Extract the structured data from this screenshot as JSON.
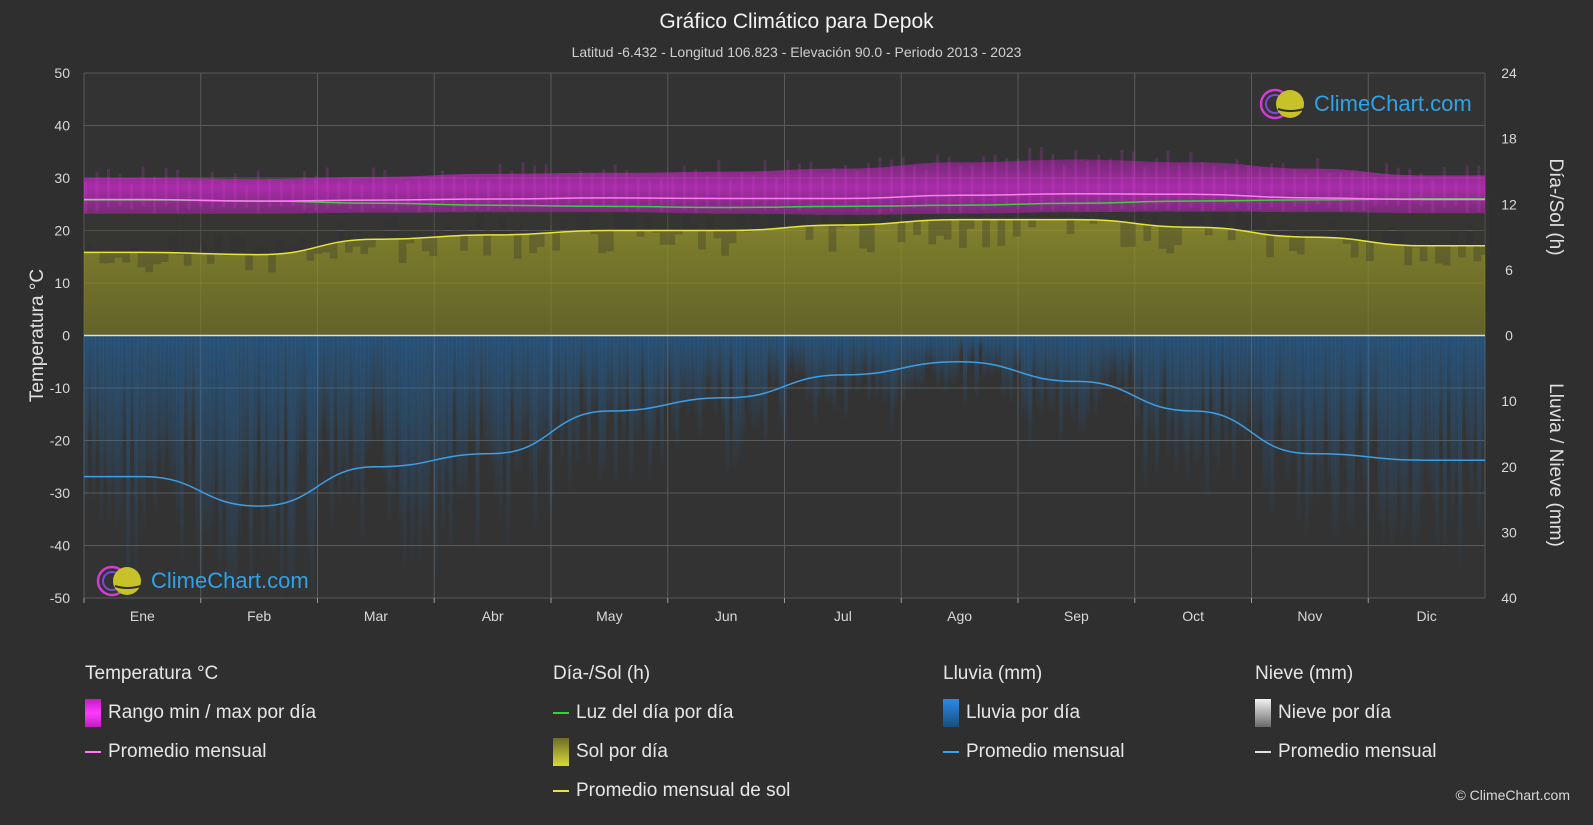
{
  "header": {
    "title": "Gráfico Climático para Depok",
    "subtitle": "Latitud -6.432 - Longitud 106.823 - Elevación 90.0 - Periodo 2013 - 2023"
  },
  "brand": {
    "text": "ClimeChart.com",
    "copyright": "© ClimeChart.com"
  },
  "chart_data": {
    "type": "line",
    "categories": [
      "Ene",
      "Feb",
      "Mar",
      "Abr",
      "May",
      "Jun",
      "Jul",
      "Ago",
      "Sep",
      "Oct",
      "Nov",
      "Dic"
    ],
    "axes": {
      "left": {
        "label": "Temperatura °C",
        "min": -50,
        "max": 50,
        "ticks": [
          "50",
          "40",
          "30",
          "20",
          "10",
          "0",
          "-10",
          "-20",
          "-30",
          "-40",
          "-50"
        ]
      },
      "right_top": {
        "label": "Día-/Sol (h)",
        "min": 0,
        "max": 24,
        "ticks": [
          "24",
          "18",
          "12",
          "6",
          "0"
        ]
      },
      "right_bottom": {
        "label": "Lluvia / Nieve (mm)",
        "min": 0,
        "max": 40,
        "ticks": [
          "0",
          "10",
          "20",
          "30",
          "40"
        ]
      }
    },
    "grid": true,
    "series": [
      {
        "name": "Rango min / max por día",
        "kind": "band",
        "color": "#d01fd0",
        "min": [
          23.2,
          23.2,
          23.4,
          23.5,
          23.5,
          23.2,
          23.0,
          23.2,
          23.5,
          23.6,
          23.5,
          23.3
        ],
        "max": [
          30.0,
          29.8,
          30.2,
          30.8,
          31.0,
          31.2,
          31.8,
          33.0,
          33.5,
          33.0,
          31.8,
          30.5
        ]
      },
      {
        "name": "Promedio mensual",
        "kind": "temp_avg",
        "color": "#ff7cf5",
        "values": [
          25.9,
          25.6,
          25.8,
          26.0,
          26.2,
          26.1,
          26.1,
          26.7,
          27.0,
          26.9,
          26.2,
          25.9
        ]
      },
      {
        "name": "Luz del día por día",
        "kind": "daylight_hours",
        "color": "#3ccf3c",
        "values": [
          12.4,
          12.3,
          12.1,
          11.9,
          11.8,
          11.7,
          11.8,
          11.9,
          12.1,
          12.3,
          12.4,
          12.5
        ]
      },
      {
        "name": "Sol por día",
        "kind": "sun_band",
        "color": "#c8c832"
      },
      {
        "name": "Promedio mensual de sol",
        "kind": "sunshine_hours",
        "color": "#e6e63a",
        "values": [
          7.6,
          7.4,
          8.8,
          9.2,
          9.6,
          9.6,
          10.1,
          10.6,
          10.6,
          9.9,
          9.0,
          8.2
        ]
      },
      {
        "name": "Lluvia por día",
        "kind": "rain_band",
        "color": "#2276c4"
      },
      {
        "name": "Promedio mensual",
        "kind": "rain_avg",
        "color": "#3d9fe6",
        "values": [
          21.5,
          26.0,
          20.0,
          18.0,
          11.5,
          9.5,
          6.0,
          4.0,
          7.0,
          11.5,
          18.0,
          19.0
        ]
      },
      {
        "name": "Nieve por día",
        "kind": "snow_band",
        "color": "#d8d8d8"
      },
      {
        "name": "Promedio mensual",
        "kind": "snow_avg",
        "color": "#e0e0e0",
        "values": [
          0,
          0,
          0,
          0,
          0,
          0,
          0,
          0,
          0,
          0,
          0,
          0
        ]
      }
    ]
  },
  "legend": {
    "temperature": {
      "title": "Temperatura °C",
      "range_label": "Rango min / max por día",
      "avg_label": "Promedio mensual"
    },
    "sun": {
      "title": "Día-/Sol (h)",
      "daylight_label": "Luz del día por día",
      "sun_label": "Sol por día",
      "sun_avg_label": "Promedio mensual de sol"
    },
    "rain": {
      "title": "Lluvia (mm)",
      "rain_label": "Lluvia por día",
      "avg_label": "Promedio mensual"
    },
    "snow": {
      "title": "Nieve (mm)",
      "snow_label": "Nieve por día",
      "avg_label": "Promedio mensual"
    }
  },
  "colors": {
    "background": "#2f2f2f",
    "grid": "#5a5a5a",
    "zero_line": "#dddddd"
  }
}
